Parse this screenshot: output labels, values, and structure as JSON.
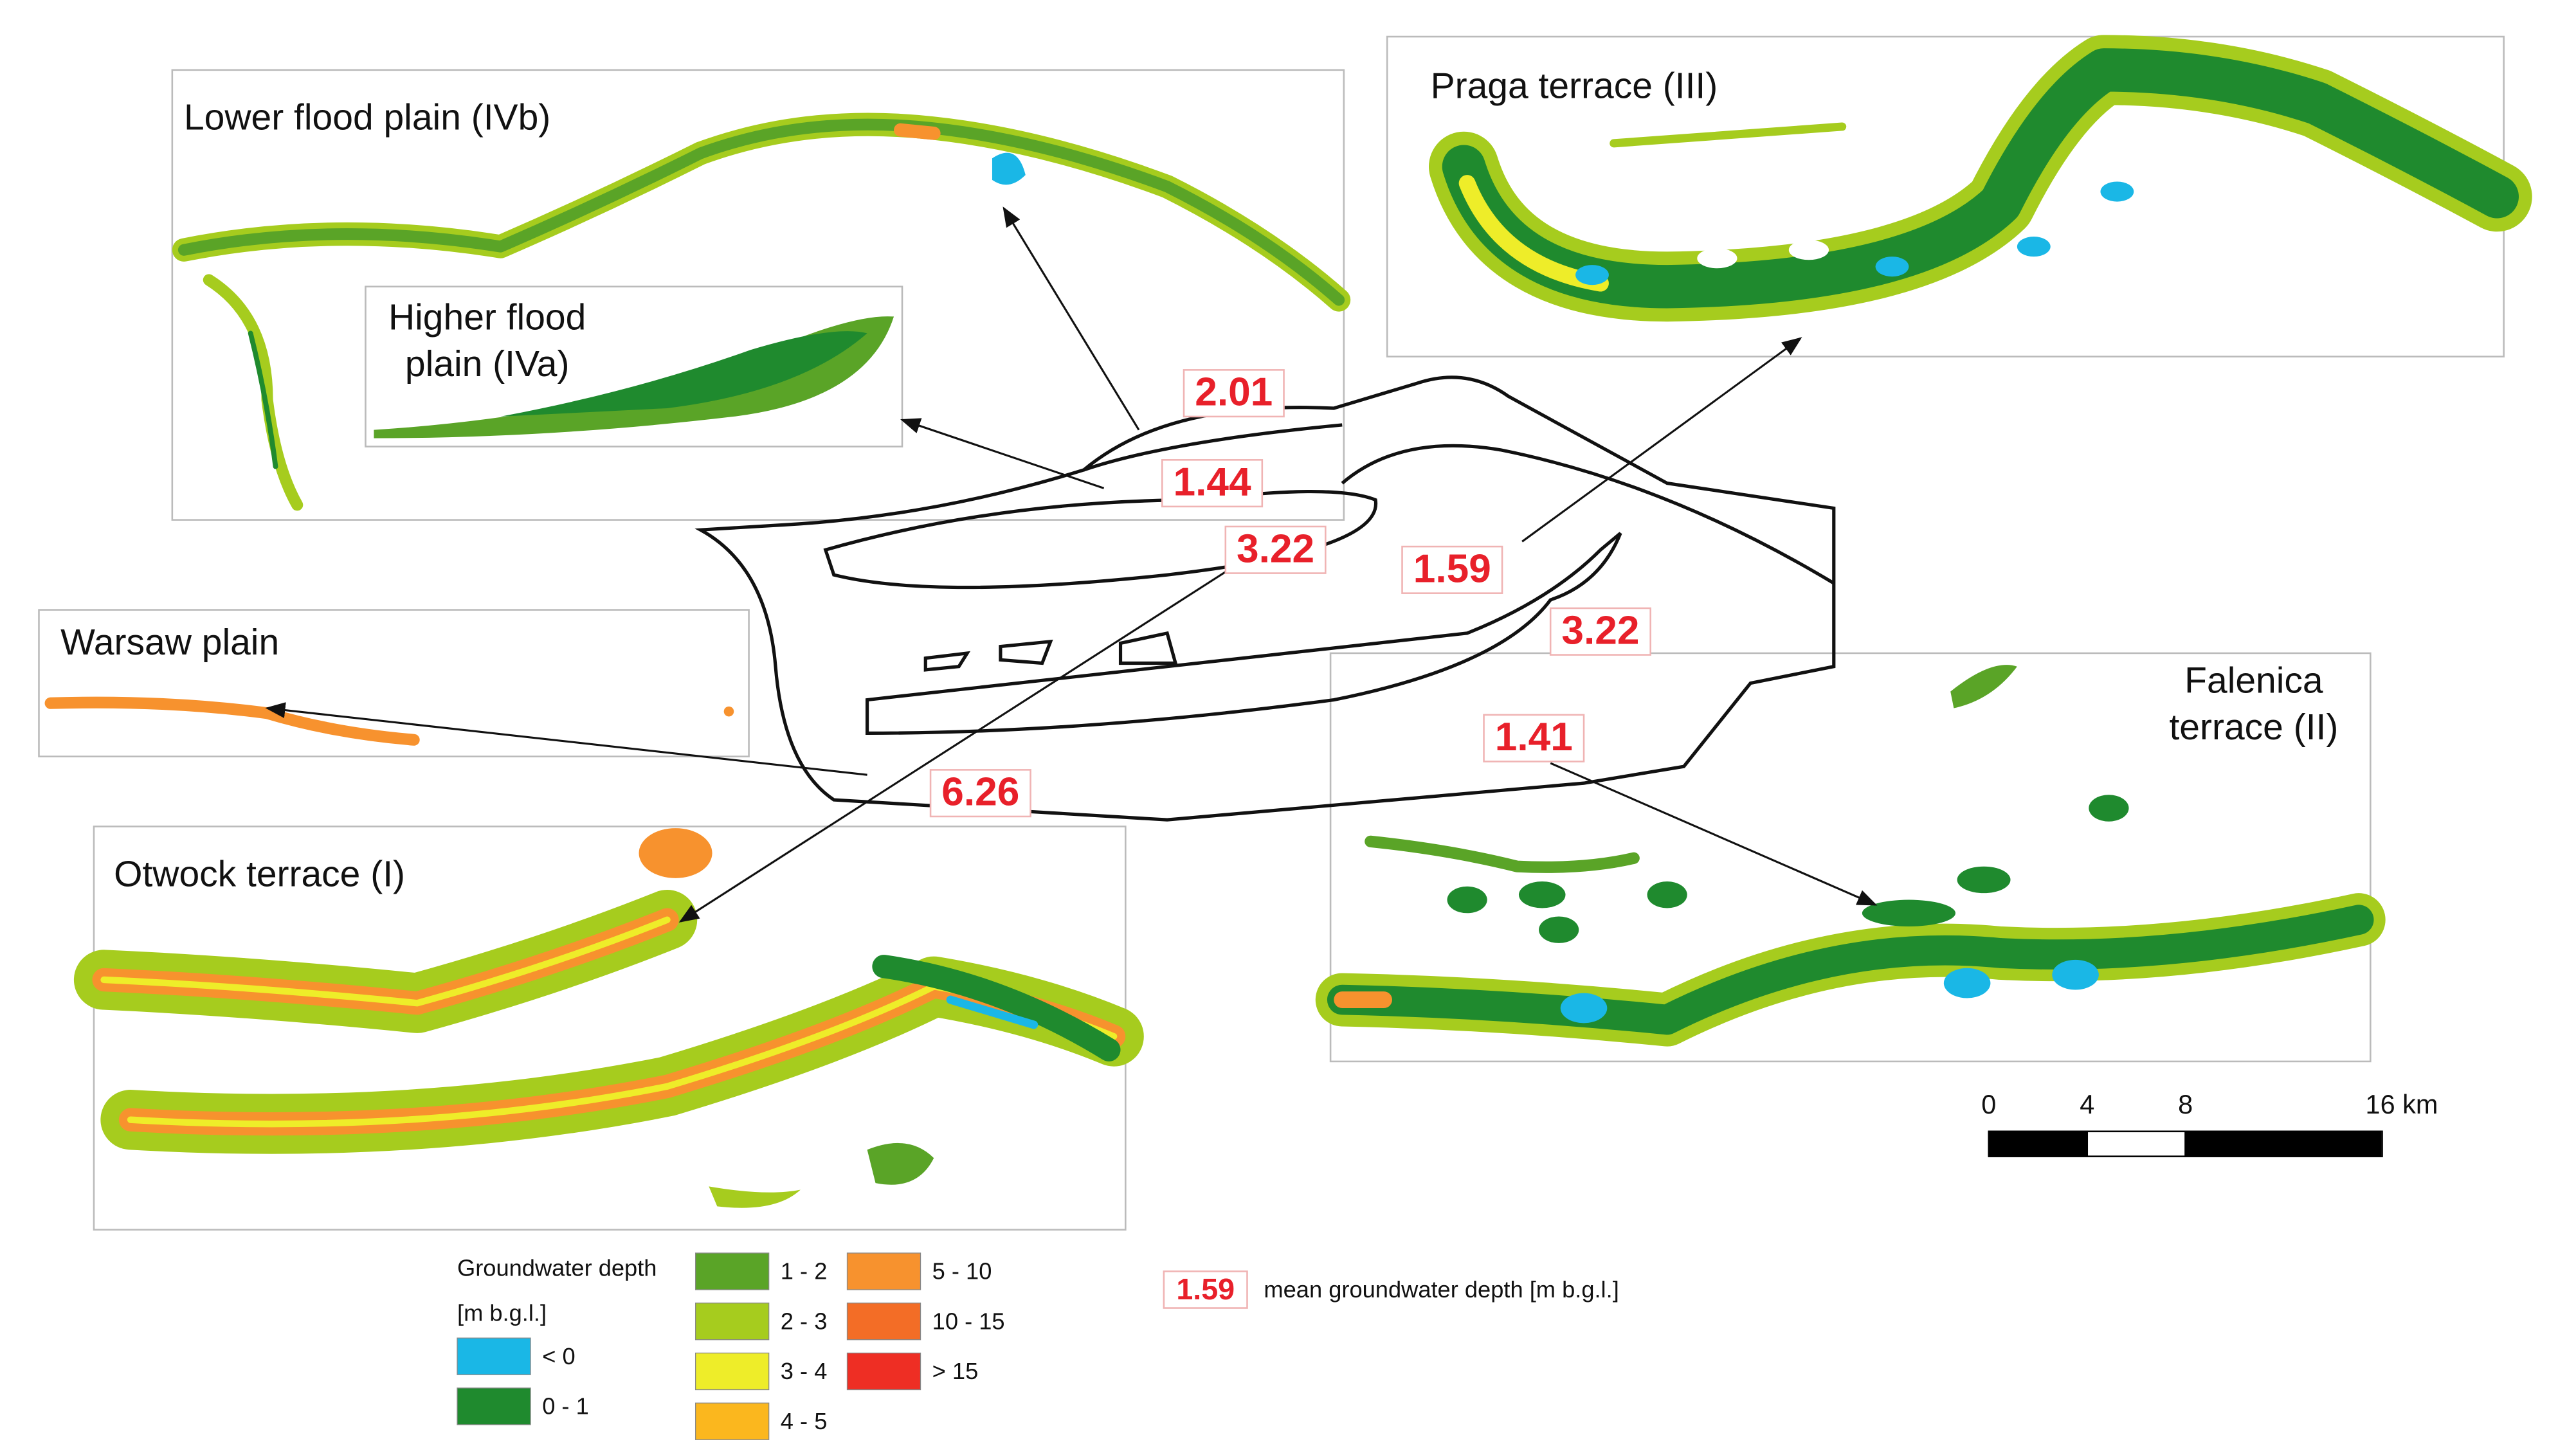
{
  "panels": {
    "lower_flood_plain": "Lower flood plain (IVb)",
    "higher_flood_plain": [
      "Higher flood",
      "plain (IVa)"
    ],
    "praga_terrace": "Praga terrace (III)",
    "warsaw_plain": "Warsaw plain",
    "otwock_terrace": "Otwock terrace (I)",
    "falenica_terrace": [
      "Falenica",
      "terrace (II)"
    ]
  },
  "mean_depths": [
    2.01,
    1.44,
    3.22,
    1.59,
    3.22,
    6.26,
    1.41
  ],
  "scale_bar": {
    "ticks": [
      0,
      4,
      8,
      {
        "value": 16,
        "label": "16 km"
      }
    ]
  },
  "legend": {
    "title": "Groundwater depth",
    "unit": "[m b.g.l.]",
    "items": [
      {
        "label": "< 0",
        "color": "#1ab7e6"
      },
      {
        "label": "0 - 1",
        "color": "#1f8a2e"
      },
      {
        "label": "1 - 2",
        "color": "#5aa427"
      },
      {
        "label": "2 - 3",
        "color": "#a6cc1e"
      },
      {
        "label": "3 - 4",
        "color": "#eeed29"
      },
      {
        "label": "4 - 5",
        "color": "#fbb71e"
      },
      {
        "label": "5 - 10",
        "color": "#f7922e"
      },
      {
        "label": "10 - 15",
        "color": "#f36d26"
      },
      {
        "label": "> 15",
        "color": "#ee2e24"
      }
    ],
    "note_value": 1.59,
    "note_text": "mean groundwater depth [m b.g.l.]"
  }
}
